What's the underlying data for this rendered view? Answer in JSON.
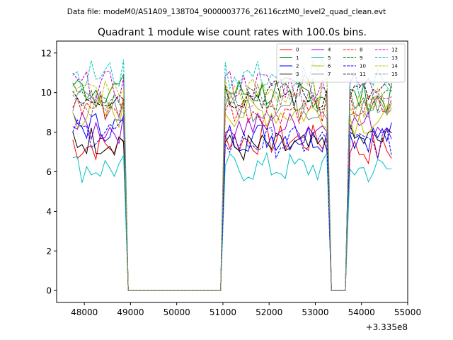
{
  "figure": {
    "suptitle": "Data file: modeM0/AS1A09_138T04_9000003776_26116cztM0_level2_quad_clean.evt"
  },
  "chart_data": {
    "type": "line",
    "title": "Quadrant 1 module wise count rates with 100.0s bins.",
    "xlabel": "",
    "ylabel": "",
    "x_offset_label": "+3.335e8",
    "xlim": [
      47400,
      55000
    ],
    "ylim": [
      -0.6,
      12.6
    ],
    "xticks": [
      48000,
      49000,
      50000,
      51000,
      52000,
      53000,
      54000,
      55000
    ],
    "xtick_labels": [
      "48000",
      "49000",
      "50000",
      "51000",
      "52000",
      "53000",
      "54000",
      "55000"
    ],
    "yticks": [
      0,
      2,
      4,
      6,
      8,
      10,
      12
    ],
    "ytick_labels": [
      "0",
      "2",
      "4",
      "6",
      "8",
      "10",
      "12"
    ],
    "grid": false,
    "legend_position": "top-right",
    "legend_columns": 4,
    "segments": [
      {
        "start": 47750,
        "end": 48850
      },
      {
        "start": 51050,
        "end": 53250
      },
      {
        "start": 53750,
        "end": 54650
      }
    ],
    "series": [
      {
        "name": "0",
        "color": "#ff0000",
        "dash": "solid",
        "seg_levels": [
          7.3,
          7.6,
          7.1
        ]
      },
      {
        "name": "1",
        "color": "#008000",
        "dash": "solid",
        "seg_levels": [
          10.2,
          10.0,
          9.7
        ]
      },
      {
        "name": "2",
        "color": "#0000ff",
        "dash": "solid",
        "seg_levels": [
          8.3,
          7.8,
          7.8
        ]
      },
      {
        "name": "3",
        "color": "#000000",
        "dash": "solid",
        "seg_levels": [
          7.6,
          7.2,
          7.6
        ]
      },
      {
        "name": "4",
        "color": "#9400d3",
        "dash": "solid",
        "seg_levels": [
          8.2,
          8.3,
          8.4
        ]
      },
      {
        "name": "5",
        "color": "#00bfbf",
        "dash": "solid",
        "seg_levels": [
          6.2,
          6.2,
          6.1
        ]
      },
      {
        "name": "6",
        "color": "#bfbf00",
        "dash": "solid",
        "seg_levels": [
          8.9,
          9.0,
          8.6
        ]
      },
      {
        "name": "7",
        "color": "#808080",
        "dash": "solid",
        "seg_levels": [
          9.4,
          9.3,
          9.1
        ]
      },
      {
        "name": "8",
        "color": "#ff0000",
        "dash": "dashed",
        "seg_levels": [
          9.3,
          9.2,
          9.2
        ]
      },
      {
        "name": "9",
        "color": "#008000",
        "dash": "dashed",
        "seg_levels": [
          9.9,
          9.9,
          9.8
        ]
      },
      {
        "name": "10",
        "color": "#0000ff",
        "dash": "dashed",
        "seg_levels": [
          8.0,
          7.5,
          7.4
        ]
      },
      {
        "name": "11",
        "color": "#000000",
        "dash": "dashed",
        "seg_levels": [
          9.9,
          9.9,
          9.9
        ]
      },
      {
        "name": "12",
        "color": "#bf00bf",
        "dash": "dashed",
        "seg_levels": [
          10.3,
          10.4,
          10.3
        ]
      },
      {
        "name": "13",
        "color": "#00bfbf",
        "dash": "dashed",
        "seg_levels": [
          10.9,
          10.9,
          10.6
        ]
      },
      {
        "name": "14",
        "color": "#bfbf00",
        "dash": "dashed",
        "seg_levels": [
          10.0,
          10.0,
          9.5
        ]
      },
      {
        "name": "15",
        "color": "#808080",
        "dash": "dashed",
        "seg_levels": [
          9.5,
          9.7,
          9.4
        ]
      }
    ]
  }
}
